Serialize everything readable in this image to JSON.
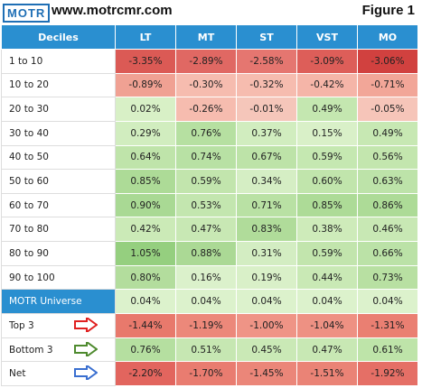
{
  "header": {
    "logo": "MOTR",
    "url": "www.motrcmr.com",
    "figure": "Figure 1"
  },
  "table": {
    "columns": [
      "Deciles",
      "LT",
      "MT",
      "ST",
      "VST",
      "MO"
    ],
    "rows": [
      {
        "label": "1 to 10",
        "values": [
          "-3.35%",
          "-2.89%",
          "-2.58%",
          "-3.09%",
          "-3.06%"
        ],
        "colors": [
          "#db5a55",
          "#e06863",
          "#e57670",
          "#dd5e59",
          "#d1413f"
        ]
      },
      {
        "label": "10 to 20",
        "values": [
          "-0.89%",
          "-0.30%",
          "-0.32%",
          "-0.42%",
          "-0.71%"
        ],
        "colors": [
          "#f0a193",
          "#f6bcaf",
          "#f6bcaf",
          "#f5b5a8",
          "#f2a698"
        ]
      },
      {
        "label": "20 to 30",
        "values": [
          "0.02%",
          "-0.26%",
          "-0.01%",
          "0.49%",
          "-0.05%"
        ],
        "colors": [
          "#d8f0c6",
          "#f6bcaf",
          "#f5c6ba",
          "#c4e7b0",
          "#f6c5b9"
        ]
      },
      {
        "label": "30 to 40",
        "values": [
          "0.29%",
          "0.76%",
          "0.37%",
          "0.15%",
          "0.49%"
        ],
        "colors": [
          "#d1edbf",
          "#b6e0a1",
          "#d1edbf",
          "#d9f0c8",
          "#c7e8b3"
        ]
      },
      {
        "label": "40 to 50",
        "values": [
          "0.64%",
          "0.74%",
          "0.67%",
          "0.59%",
          "0.56%"
        ],
        "colors": [
          "#bfe4aa",
          "#b8e1a4",
          "#bde3a8",
          "#c5e8b1",
          "#c3e6ae"
        ]
      },
      {
        "label": "50 to 60",
        "values": [
          "0.85%",
          "0.59%",
          "0.34%",
          "0.60%",
          "0.63%"
        ],
        "colors": [
          "#addb97",
          "#c2e5ad",
          "#d5eec4",
          "#c1e5ac",
          "#bde3a9"
        ]
      },
      {
        "label": "60 to 70",
        "values": [
          "0.90%",
          "0.53%",
          "0.71%",
          "0.85%",
          "0.86%"
        ],
        "colors": [
          "#a9d994",
          "#c3e6af",
          "#b9e1a4",
          "#addb97",
          "#addb97"
        ]
      },
      {
        "label": "70 to 80",
        "values": [
          "0.42%",
          "0.47%",
          "0.83%",
          "0.38%",
          "0.46%"
        ],
        "colors": [
          "#cbeab7",
          "#c8e8b4",
          "#b0dc9a",
          "#ceebba",
          "#c8e8b4"
        ]
      },
      {
        "label": "80 to 90",
        "values": [
          "1.05%",
          "0.88%",
          "0.31%",
          "0.59%",
          "0.66%"
        ],
        "colors": [
          "#95cf7f",
          "#abd995",
          "#d3edc2",
          "#c2e5ad",
          "#bbe2a7"
        ]
      },
      {
        "label": "90 to 100",
        "values": [
          "0.80%",
          "0.16%",
          "0.19%",
          "0.44%",
          "0.73%"
        ],
        "colors": [
          "#b3dd9d",
          "#dbf1cb",
          "#d9f0c8",
          "#c9e9b5",
          "#b8e0a2"
        ]
      },
      {
        "label": "MOTR Universe",
        "values": [
          "0.04%",
          "0.04%",
          "0.04%",
          "0.04%",
          "0.04%"
        ],
        "colors": [
          "#dcf2cc",
          "#dcf2cc",
          "#dcf2cc",
          "#dcf2cc",
          "#dcf2cc"
        ]
      },
      {
        "label": "Top 3",
        "values": [
          "-1.44%",
          "-1.19%",
          "-1.00%",
          "-1.04%",
          "-1.31%"
        ],
        "colors": [
          "#e8796c",
          "#ec887a",
          "#ef9486",
          "#ee9183",
          "#ea7f72"
        ]
      },
      {
        "label": "Bottom 3",
        "values": [
          "0.76%",
          "0.51%",
          "0.45%",
          "0.47%",
          "0.61%"
        ],
        "colors": [
          "#b5dfa0",
          "#c6e7b2",
          "#cae9b6",
          "#c8e8b4",
          "#bee4a9"
        ]
      },
      {
        "label": "Net",
        "values": [
          "-2.20%",
          "-1.70%",
          "-1.45%",
          "-1.51%",
          "-1.92%"
        ],
        "colors": [
          "#e2655e",
          "#e97c70",
          "#eb8679",
          "#ea8376",
          "#e56f66"
        ]
      }
    ]
  }
}
